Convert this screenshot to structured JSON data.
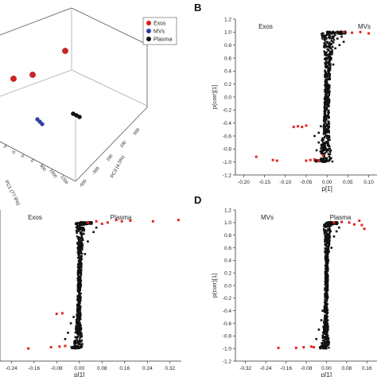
{
  "figure": {
    "panel_letters": [
      "B",
      "D"
    ],
    "legend3d": [
      {
        "name": "Exos",
        "color": "#d42020"
      },
      {
        "name": "MVs",
        "color": "#2a3fa8"
      },
      {
        "name": "Plasma",
        "color": "#111111"
      }
    ],
    "axis3d": {
      "pc1_label": "PC1 (77.9%)",
      "pc3_label": "PC3 (4.5%)",
      "pc1_ticks": [
        "0",
        "-0",
        "0",
        "0",
        "600",
        "1000",
        "1200"
      ],
      "pc3_ticks": [
        "-500",
        "-300",
        "100",
        "100",
        "500"
      ]
    }
  },
  "chart_data": [
    {
      "id": "pca-3d",
      "type": "scatter",
      "title": "",
      "points": {
        "Exos": [
          [
            -80,
            300
          ],
          [
            -20,
            150
          ],
          [
            40,
            130
          ]
        ],
        "MVs": [
          [
            0,
            -200
          ],
          [
            5,
            -205
          ],
          [
            8,
            -210
          ]
        ],
        "Plasma": [
          [
            120,
            -150
          ],
          [
            125,
            -155
          ],
          [
            130,
            -160
          ]
        ]
      }
    },
    {
      "id": "splot-B",
      "type": "scatter",
      "title": "",
      "group_left": "Exos",
      "group_right": "MVs",
      "xlabel": "p[1]",
      "ylabel": "p(corr)[1]",
      "xticks": [
        "-0.20",
        "-0.15",
        "-0.10",
        "-0.05",
        "0.00",
        "0.05",
        "0.10"
      ],
      "yticks": [
        "-1.2",
        "-1.0",
        "-0.8",
        "-0.6",
        "-0.4",
        "-0.2",
        "0.0",
        "0.2",
        "0.4",
        "0.6",
        "0.8",
        "1.0",
        "1.2"
      ],
      "xlim": [
        -0.22,
        0.12
      ],
      "ylim": [
        -1.2,
        1.2
      ],
      "red_points": [
        [
          -0.17,
          -0.92
        ],
        [
          -0.13,
          -0.97
        ],
        [
          -0.12,
          -0.98
        ],
        [
          -0.08,
          -0.46
        ],
        [
          -0.07,
          -0.45
        ],
        [
          -0.06,
          -0.46
        ],
        [
          -0.05,
          -0.44
        ],
        [
          -0.04,
          -0.97
        ],
        [
          -0.05,
          -0.98
        ],
        [
          -0.03,
          -0.96
        ],
        [
          -0.02,
          -0.98
        ],
        [
          -0.01,
          -0.9
        ],
        [
          0.04,
          1.0
        ],
        [
          0.06,
          0.99
        ],
        [
          0.08,
          1.0
        ],
        [
          0.1,
          0.98
        ]
      ],
      "black_points": [
        [
          -0.03,
          -0.6
        ],
        [
          -0.02,
          -0.55
        ],
        [
          -0.015,
          -0.45
        ],
        [
          0.01,
          0.6
        ],
        [
          0.02,
          0.75
        ],
        [
          0.03,
          0.8
        ],
        [
          0.025,
          0.9
        ],
        [
          0.04,
          0.85
        ],
        [
          0.015,
          0.5
        ],
        [
          -0.02,
          -0.7
        ],
        [
          -0.025,
          -0.82
        ],
        [
          0.035,
          0.93
        ]
      ]
    },
    {
      "id": "splot-C",
      "type": "scatter",
      "title": "",
      "group_left": "Exos",
      "group_right": "Plasma",
      "xlabel": "p[1]",
      "ylabel": "",
      "xticks": [
        "-0.24",
        "-0.16",
        "-0.08",
        "0.00",
        "0.08",
        "0.16",
        "0.24",
        "0.32"
      ],
      "yticks": [],
      "xlim": [
        -0.28,
        0.36
      ],
      "ylim": [
        -1.2,
        1.2
      ],
      "red_points": [
        [
          -0.18,
          -1.0
        ],
        [
          -0.1,
          -0.98
        ],
        [
          -0.07,
          -0.97
        ],
        [
          -0.05,
          -0.96
        ],
        [
          -0.08,
          -0.45
        ],
        [
          -0.06,
          -0.44
        ],
        [
          0.03,
          1.0
        ],
        [
          0.06,
          1.02
        ],
        [
          0.1,
          1.0
        ],
        [
          0.13,
          1.04
        ],
        [
          0.18,
          1.03
        ],
        [
          0.26,
          1.02
        ],
        [
          0.35,
          1.04
        ],
        [
          0.08,
          0.98
        ],
        [
          0.15,
          1.02
        ]
      ],
      "black_points": [
        [
          -0.04,
          -0.75
        ],
        [
          -0.03,
          -0.6
        ],
        [
          -0.02,
          -0.5
        ],
        [
          0.02,
          0.5
        ],
        [
          0.03,
          0.7
        ],
        [
          0.05,
          0.85
        ],
        [
          0.06,
          0.92
        ],
        [
          -0.05,
          -0.85
        ]
      ]
    },
    {
      "id": "splot-D",
      "type": "scatter",
      "title": "",
      "group_left": "MVs",
      "group_right": "Plasma",
      "xlabel": "p[1]",
      "ylabel": "p(corr)[1]",
      "xticks": [
        "-0.32",
        "-0.24",
        "-0.16",
        "-0.08",
        "0.00",
        "0.08",
        "0.16"
      ],
      "yticks": [
        "-1.2",
        "-1.0",
        "-0.8",
        "-0.6",
        "-0.4",
        "-0.2",
        "0.0",
        "0.2",
        "0.4",
        "0.6",
        "0.8",
        "1.0",
        "1.2"
      ],
      "xlim": [
        -0.36,
        0.2
      ],
      "ylim": [
        -1.2,
        1.2
      ],
      "red_points": [
        [
          -0.19,
          -0.99
        ],
        [
          -0.12,
          -0.99
        ],
        [
          -0.09,
          -0.98
        ],
        [
          -0.06,
          -0.97
        ],
        [
          -0.05,
          -0.98
        ],
        [
          0.03,
          1.0
        ],
        [
          0.06,
          1.01
        ],
        [
          0.09,
          1.0
        ],
        [
          0.11,
          0.97
        ],
        [
          0.13,
          1.03
        ],
        [
          0.15,
          0.9
        ],
        [
          0.14,
          0.96
        ]
      ],
      "black_points": [
        [
          -0.03,
          -0.7
        ],
        [
          -0.02,
          -0.55
        ],
        [
          -0.015,
          -0.4
        ],
        [
          0.02,
          0.6
        ],
        [
          0.03,
          0.78
        ],
        [
          0.04,
          0.86
        ],
        [
          0.05,
          0.92
        ],
        [
          -0.04,
          -0.85
        ]
      ]
    }
  ]
}
